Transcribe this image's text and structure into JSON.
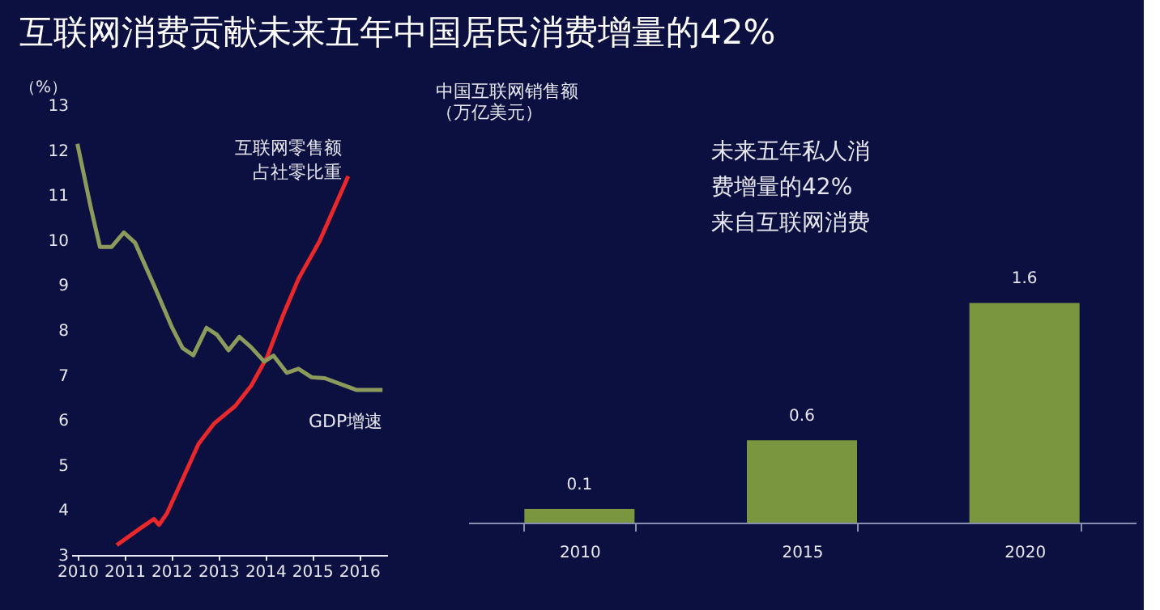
{
  "chart_data": [
    {
      "type": "line",
      "title": "互联网消费贡献未来五年中国居民消费增量的42%",
      "ylabel": "（%）",
      "xlim": [
        2009.87,
        2016.6
      ],
      "xticks": [
        2010,
        2011,
        2012,
        2013,
        2014,
        2015,
        2016
      ],
      "ylim": [
        3,
        13
      ],
      "yticks": [
        3,
        4,
        5,
        6,
        7,
        8,
        9,
        10,
        11,
        12,
        13
      ],
      "grid": false,
      "series": [
        {
          "name": "互联网零售额占社零比重",
          "color": "#e8282b",
          "x": [
            2010.84,
            2011.35,
            2011.63,
            2011.74,
            2011.91,
            2012.19,
            2012.58,
            2012.91,
            2013.36,
            2013.7,
            2014.04,
            2014.37,
            2014.71,
            2015.16,
            2015.77
          ],
          "values": [
            3.22,
            3.6,
            3.8,
            3.67,
            3.93,
            4.57,
            5.47,
            5.92,
            6.31,
            6.76,
            7.4,
            8.3,
            9.14,
            9.98,
            11.42
          ]
        },
        {
          "name": "GDP增速",
          "color": "#8c9a5c",
          "x": [
            2010.0,
            2010.28,
            2010.48,
            2010.73,
            2010.99,
            2011.23,
            2011.63,
            2012.02,
            2012.24,
            2012.47,
            2012.75,
            2012.97,
            2013.22,
            2013.45,
            2013.7,
            2013.98,
            2014.18,
            2014.46,
            2014.71,
            2014.99,
            2015.27,
            2015.94,
            2016.5
          ],
          "values": [
            12.14,
            10.75,
            9.85,
            9.85,
            10.17,
            9.94,
            9.0,
            8.05,
            7.6,
            7.44,
            8.05,
            7.9,
            7.55,
            7.85,
            7.62,
            7.3,
            7.43,
            7.05,
            7.14,
            6.95,
            6.93,
            6.67,
            6.67
          ]
        }
      ]
    },
    {
      "type": "bar",
      "title": "中国互联网销售额（万亿美元）",
      "categories": [
        "2010",
        "2015",
        "2020"
      ],
      "values": [
        0.1,
        0.6,
        1.6
      ],
      "color": "#7a963f",
      "data_labels": true,
      "annotations": [
        "未来五年私人消费增量的42%来自互联网消费"
      ]
    }
  ]
}
